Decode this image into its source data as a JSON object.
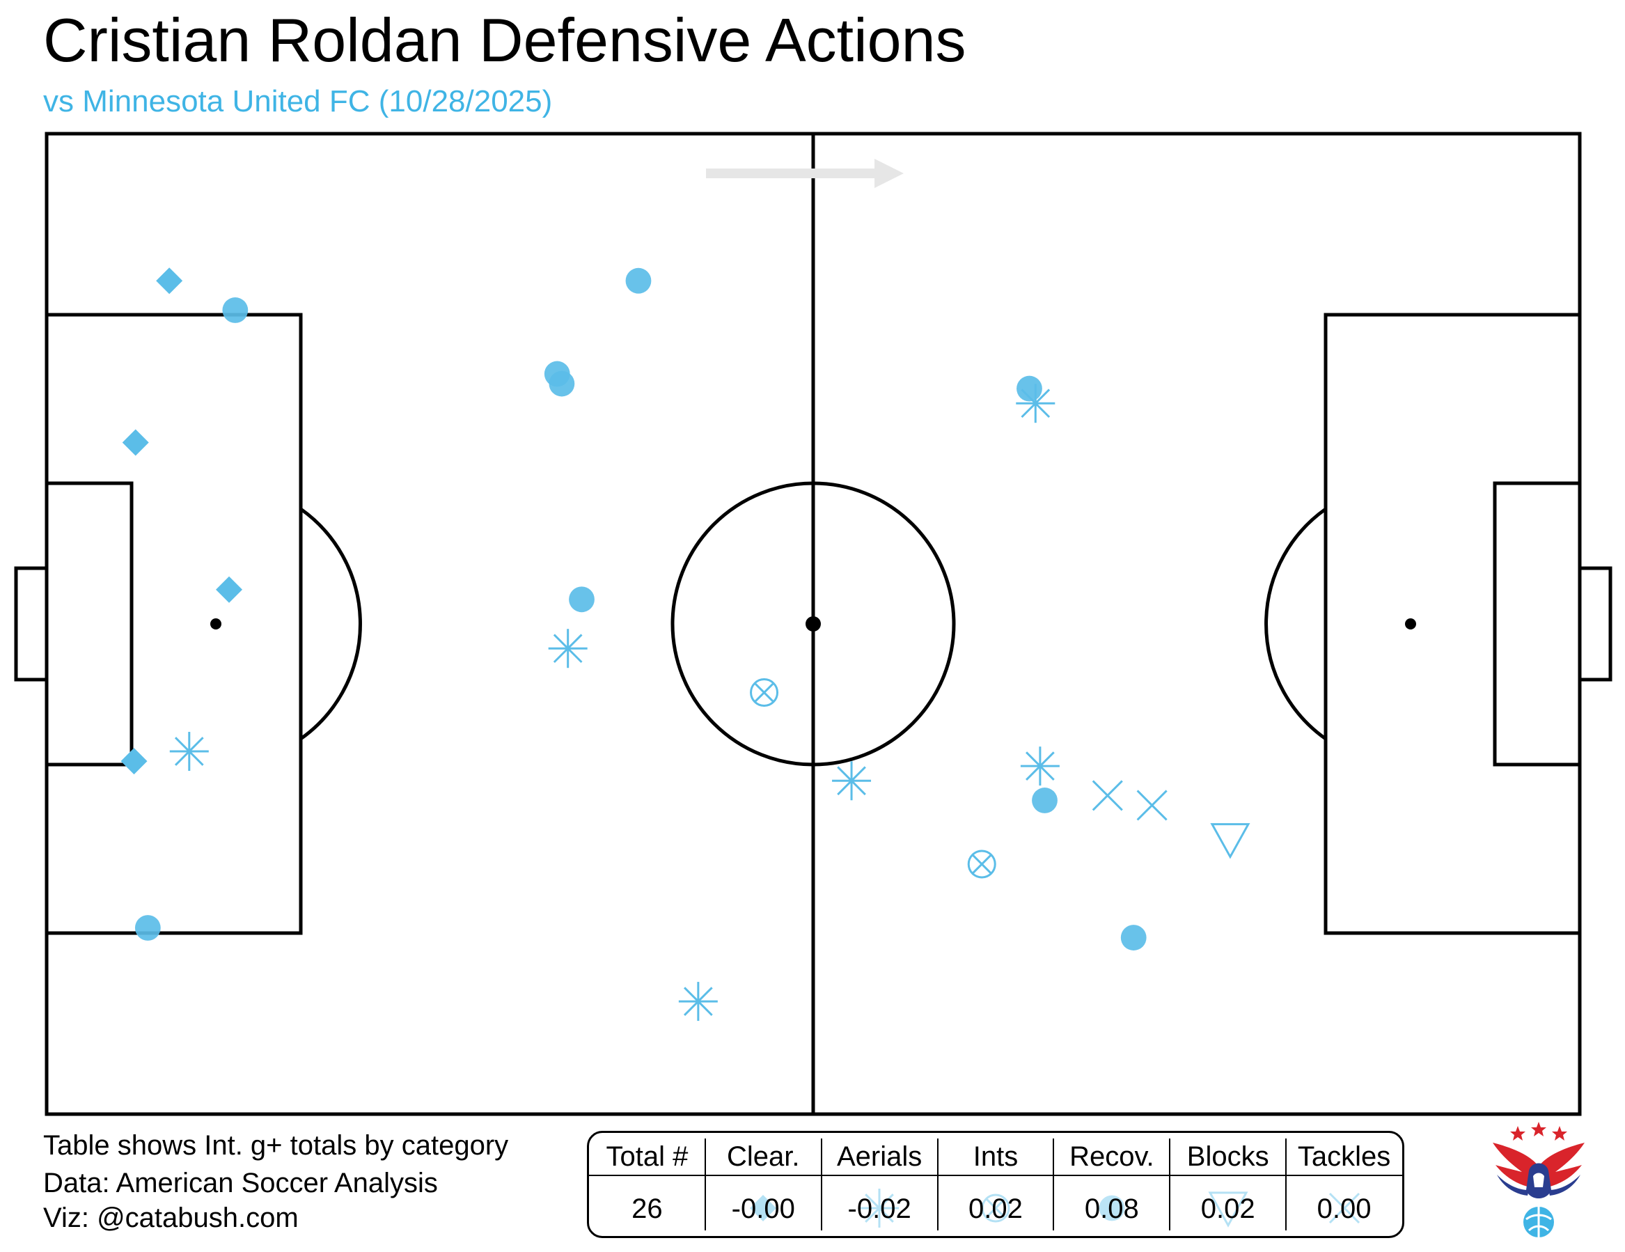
{
  "title": "Cristian Roldan Defensive Actions",
  "subtitle": "vs Minnesota United FC (10/28/2025)",
  "notes": [
    "Table shows Int. g+ totals by category",
    "Data: American Soccer Analysis",
    "Viz: @catabush.com"
  ],
  "colors": {
    "marker": "#5bbde8",
    "arrow": "#e6e6e6",
    "subtitle": "#3fb4e5",
    "logo_red": "#d9242b",
    "logo_blue": "#2a3d8f"
  },
  "table": {
    "columns": [
      {
        "header": "Total #",
        "value": "26",
        "marker": ""
      },
      {
        "header": "Clear.",
        "value": "-0.00",
        "marker": "diamond"
      },
      {
        "header": "Aerials",
        "value": "-0.02",
        "marker": "asterisk"
      },
      {
        "header": "Ints",
        "value": "0.02",
        "marker": "circle-x"
      },
      {
        "header": "Recov.",
        "value": "0.08",
        "marker": "circle"
      },
      {
        "header": "Blocks",
        "value": "0.02",
        "marker": "triangle-down"
      },
      {
        "header": "Tackles",
        "value": "0.00",
        "marker": "x"
      }
    ]
  },
  "chart_data": {
    "type": "scatter",
    "pitch": {
      "x_range": [
        0,
        100
      ],
      "y_range": [
        0,
        100
      ],
      "attack_direction": "left-to-right"
    },
    "series": [
      {
        "name": "Clear.",
        "marker": "diamond",
        "points": [
          [
            8,
            85
          ],
          [
            5.8,
            68.5
          ],
          [
            11.9,
            53.5
          ],
          [
            5.7,
            36
          ]
        ]
      },
      {
        "name": "Aerials",
        "marker": "asterisk",
        "points": [
          [
            9.3,
            37
          ],
          [
            34,
            47.5
          ],
          [
            42.5,
            11.5
          ],
          [
            52.5,
            34
          ],
          [
            64.5,
            72.5
          ],
          [
            64.8,
            35.5
          ]
        ]
      },
      {
        "name": "Ints",
        "marker": "circle-x",
        "points": [
          [
            46.8,
            43
          ],
          [
            61,
            25.5
          ]
        ]
      },
      {
        "name": "Recov.",
        "marker": "circle",
        "points": [
          [
            12.3,
            82
          ],
          [
            38.6,
            85
          ],
          [
            33.3,
            75.5
          ],
          [
            33.6,
            74.5
          ],
          [
            34.9,
            52.5
          ],
          [
            6.6,
            19
          ],
          [
            64.1,
            74
          ],
          [
            65.1,
            32
          ],
          [
            70.9,
            18
          ]
        ]
      },
      {
        "name": "Blocks",
        "marker": "triangle-down",
        "points": [
          [
            77.2,
            28
          ]
        ]
      },
      {
        "name": "Tackles",
        "marker": "x",
        "points": [
          [
            69.2,
            32.5
          ],
          [
            72.1,
            31.5
          ]
        ]
      }
    ]
  }
}
